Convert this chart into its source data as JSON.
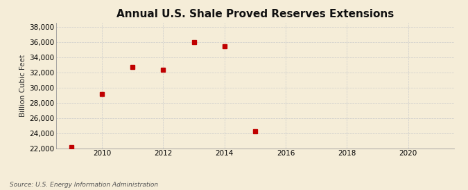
{
  "title": "Annual U.S. Shale Proved Reserves Extensions",
  "ylabel": "Billion Cubic Feet",
  "source": "Source: U.S. Energy Information Administration",
  "years": [
    2009,
    2010,
    2011,
    2012,
    2013,
    2014,
    2015
  ],
  "values": [
    22100,
    29100,
    32700,
    32300,
    36000,
    35400,
    24200
  ],
  "xlim": [
    2008.5,
    2021.5
  ],
  "ylim": [
    22000,
    38500
  ],
  "yticks": [
    22000,
    24000,
    26000,
    28000,
    30000,
    32000,
    34000,
    36000,
    38000
  ],
  "xticks": [
    2010,
    2012,
    2014,
    2016,
    2018,
    2020
  ],
  "marker_color": "#c00000",
  "marker_size": 4,
  "bg_color": "#f5edd8",
  "grid_color": "#cccccc",
  "title_fontsize": 11,
  "label_fontsize": 7.5,
  "tick_fontsize": 7.5,
  "source_fontsize": 6.5
}
